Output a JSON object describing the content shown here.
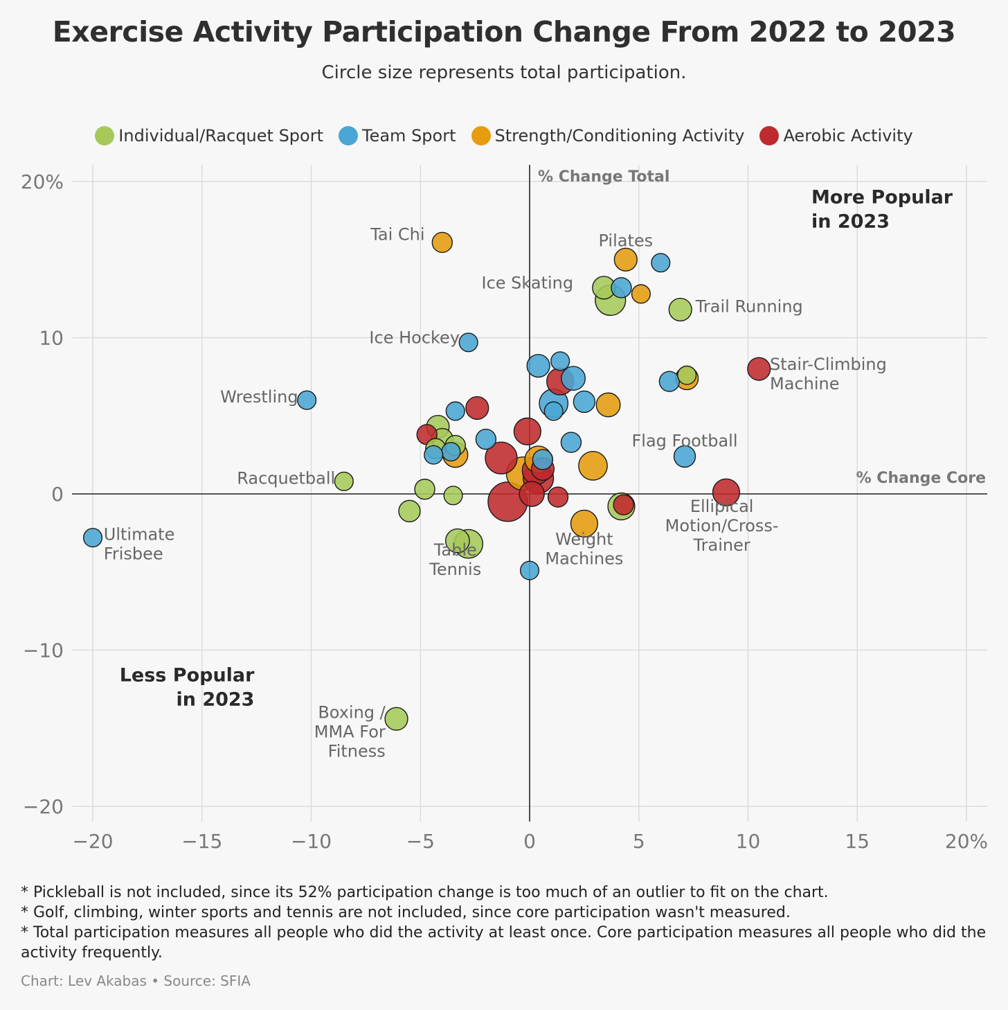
{
  "title": "Exercise Activity Participation Change From 2022 to 2023",
  "subtitle": "Circle size represents total participation.",
  "legend": [
    {
      "label": "Individual/Racquet Sport",
      "color": "#a6c95a"
    },
    {
      "label": "Team Sport",
      "color": "#4aa6d4"
    },
    {
      "label": "Strength/Conditioning Activity",
      "color": "#e59c0e"
    },
    {
      "label": "Aerobic Activity",
      "color": "#bf2a2e"
    }
  ],
  "notes": [
    "* Pickleball is not included, since its 52% participation change is too much of an outlier to fit on the chart.",
    "* Golf, climbing, winter sports and tennis are not included, since core participation wasn't measured.",
    "* Total participation measures all people who did the activity at least once. Core participation measures all people who did the activity frequently."
  ],
  "credit": "Chart: Lev Akabas • Source: SFIA",
  "chart_data": {
    "type": "scatter",
    "xlabel": "% Change Core",
    "ylabel": "% Change Total",
    "xlim": [
      -21,
      21
    ],
    "ylim": [
      -21,
      21
    ],
    "xticks": [
      {
        "v": -20,
        "label": "−20"
      },
      {
        "v": -15,
        "label": "−15"
      },
      {
        "v": -10,
        "label": "−10"
      },
      {
        "v": -5,
        "label": "−5"
      },
      {
        "v": 0,
        "label": "0"
      },
      {
        "v": 5,
        "label": "5"
      },
      {
        "v": 10,
        "label": "10"
      },
      {
        "v": 15,
        "label": "15"
      },
      {
        "v": 20,
        "label": "20%"
      }
    ],
    "yticks": [
      {
        "v": 20,
        "label": "20%"
      },
      {
        "v": 10,
        "label": "10"
      },
      {
        "v": 0,
        "label": "0"
      },
      {
        "v": -10,
        "label": "−10"
      },
      {
        "v": -20,
        "label": "−20"
      }
    ],
    "grid": true,
    "quadrant_labels": [
      {
        "text": [
          "More Popular",
          "in 2023"
        ],
        "x": 12.9,
        "y": 18.6,
        "anchor": "start"
      },
      {
        "text": [
          "Less Popular",
          "in 2023"
        ],
        "x": -12.6,
        "y": -12.0,
        "anchor": "end"
      }
    ],
    "categories": {
      "individual": "#a6c95a",
      "team": "#4aa6d4",
      "strength": "#e59c0e",
      "aerobic": "#bf2a2e"
    },
    "points": [
      {
        "x": -4.0,
        "y": 16.1,
        "size": 2,
        "cat": "strength",
        "label": [
          "Tai Chi"
        ],
        "lx": -4.8,
        "ly": 16.6,
        "la": "end"
      },
      {
        "x": 4.4,
        "y": 15.0,
        "size": 3,
        "cat": "strength",
        "label": [
          "Pilates"
        ],
        "lx": 4.4,
        "ly": 16.2,
        "la": "middle"
      },
      {
        "x": 6.0,
        "y": 14.8,
        "size": 1.5,
        "cat": "team"
      },
      {
        "x": 3.4,
        "y": 13.2,
        "size": 3,
        "cat": "individual",
        "label": [
          "Ice Skating"
        ],
        "lx": 2.0,
        "ly": 13.5,
        "la": "end"
      },
      {
        "x": 4.2,
        "y": 13.2,
        "size": 2,
        "cat": "team"
      },
      {
        "x": 5.1,
        "y": 12.8,
        "size": 1.5,
        "cat": "strength"
      },
      {
        "x": 3.7,
        "y": 12.4,
        "size": 7,
        "cat": "individual"
      },
      {
        "x": 6.9,
        "y": 11.8,
        "size": 3,
        "cat": "individual",
        "label": [
          "Trail Running"
        ],
        "lx": 7.6,
        "ly": 12.0,
        "la": "start"
      },
      {
        "x": -2.8,
        "y": 9.7,
        "size": 1.5,
        "cat": "team",
        "label": [
          "Ice Hockey"
        ],
        "lx": -3.2,
        "ly": 10.0,
        "la": "end"
      },
      {
        "x": 1.4,
        "y": 8.5,
        "size": 1.5,
        "cat": "team"
      },
      {
        "x": 0.4,
        "y": 8.2,
        "size": 3,
        "cat": "team"
      },
      {
        "x": 10.5,
        "y": 8.0,
        "size": 3,
        "cat": "aerobic",
        "label": [
          "Stair-Climbing",
          "Machine"
        ],
        "lx": 11.0,
        "ly": 8.3,
        "la": "start"
      },
      {
        "x": 2.0,
        "y": 7.4,
        "size": 3.5,
        "cat": "team"
      },
      {
        "x": 1.4,
        "y": 7.2,
        "size": 5,
        "cat": "aerobic"
      },
      {
        "x": 6.4,
        "y": 7.2,
        "size": 2,
        "cat": "team"
      },
      {
        "x": 7.2,
        "y": 7.6,
        "size": 1.5,
        "cat": "individual"
      },
      {
        "x": 7.2,
        "y": 7.4,
        "size": 3,
        "cat": "strength"
      },
      {
        "x": -10.2,
        "y": 6.0,
        "size": 1.5,
        "cat": "team",
        "label": [
          "Wrestling"
        ],
        "lx": -10.6,
        "ly": 6.2,
        "la": "end"
      },
      {
        "x": 1.1,
        "y": 5.8,
        "size": 6,
        "cat": "team"
      },
      {
        "x": 2.5,
        "y": 5.9,
        "size": 2.5,
        "cat": "team"
      },
      {
        "x": 3.6,
        "y": 5.7,
        "size": 3.5,
        "cat": "strength"
      },
      {
        "x": 1.1,
        "y": 5.3,
        "size": 1.5,
        "cat": "team"
      },
      {
        "x": -2.4,
        "y": 5.5,
        "size": 3,
        "cat": "aerobic"
      },
      {
        "x": -3.4,
        "y": 5.3,
        "size": 1.5,
        "cat": "team"
      },
      {
        "x": -4.2,
        "y": 4.3,
        "size": 3,
        "cat": "individual"
      },
      {
        "x": -4.7,
        "y": 3.8,
        "size": 2,
        "cat": "aerobic"
      },
      {
        "x": -0.1,
        "y": 4.0,
        "size": 5,
        "cat": "aerobic"
      },
      {
        "x": -4.0,
        "y": 3.5,
        "size": 2.5,
        "cat": "individual"
      },
      {
        "x": -2.0,
        "y": 3.5,
        "size": 2,
        "cat": "team"
      },
      {
        "x": 1.9,
        "y": 3.3,
        "size": 2,
        "cat": "team"
      },
      {
        "x": -3.4,
        "y": 3.1,
        "size": 2,
        "cat": "individual"
      },
      {
        "x": -4.3,
        "y": 2.9,
        "size": 2,
        "cat": "individual"
      },
      {
        "x": -3.6,
        "y": 2.7,
        "size": 1.5,
        "cat": "team"
      },
      {
        "x": -4.4,
        "y": 2.5,
        "size": 1.5,
        "cat": "team"
      },
      {
        "x": -3.4,
        "y": 2.5,
        "size": 4,
        "cat": "strength"
      },
      {
        "x": 7.1,
        "y": 2.4,
        "size": 2.5,
        "cat": "team",
        "label": [
          "Flag Football"
        ],
        "lx": 7.1,
        "ly": 3.4,
        "la": "middle"
      },
      {
        "x": -1.3,
        "y": 2.3,
        "size": 8,
        "cat": "aerobic"
      },
      {
        "x": 0.4,
        "y": 2.2,
        "size": 5,
        "cat": "strength"
      },
      {
        "x": 0.6,
        "y": 2.2,
        "size": 2,
        "cat": "team"
      },
      {
        "x": 2.9,
        "y": 1.8,
        "size": 6,
        "cat": "strength"
      },
      {
        "x": 0.6,
        "y": 1.6,
        "size": 3,
        "cat": "aerobic"
      },
      {
        "x": 0.3,
        "y": 1.5,
        "size": 5.5,
        "cat": "aerobic"
      },
      {
        "x": -0.3,
        "y": 1.3,
        "size": 9,
        "cat": "strength"
      },
      {
        "x": 0.4,
        "y": 1.0,
        "size": 7,
        "cat": "aerobic"
      },
      {
        "x": -8.5,
        "y": 0.8,
        "size": 1.5,
        "cat": "individual",
        "label": [
          "Racquetball"
        ],
        "lx": -8.9,
        "ly": 1.0,
        "la": "end"
      },
      {
        "x": -4.8,
        "y": 0.3,
        "size": 2,
        "cat": "individual"
      },
      {
        "x": -3.5,
        "y": -0.1,
        "size": 1.5,
        "cat": "individual"
      },
      {
        "x": 9.0,
        "y": 0.1,
        "size": 5,
        "cat": "aerobic",
        "label": [
          "Ellipical",
          "Motion/Cross-",
          "Trainer"
        ],
        "lx": 8.8,
        "ly": -0.8,
        "la": "middle"
      },
      {
        "x": 0.1,
        "y": 0.0,
        "size": 4,
        "cat": "aerobic"
      },
      {
        "x": 1.3,
        "y": -0.2,
        "size": 2,
        "cat": "aerobic"
      },
      {
        "x": -1.0,
        "y": -0.5,
        "size": 14,
        "cat": "aerobic"
      },
      {
        "x": 4.2,
        "y": -0.8,
        "size": 5,
        "cat": "individual"
      },
      {
        "x": 4.3,
        "y": -0.7,
        "size": 2,
        "cat": "aerobic"
      },
      {
        "x": -5.5,
        "y": -1.1,
        "size": 2.5,
        "cat": "individual"
      },
      {
        "x": 2.5,
        "y": -1.9,
        "size": 5,
        "cat": "strength",
        "label": [
          "Weight",
          "Machines"
        ],
        "lx": 2.5,
        "ly": -2.9,
        "la": "middle"
      },
      {
        "x": -20.0,
        "y": -2.8,
        "size": 1.5,
        "cat": "team",
        "label": [
          "Ultimate",
          "Frisbee"
        ],
        "lx": -19.5,
        "ly": -2.6,
        "la": "start"
      },
      {
        "x": -2.8,
        "y": -3.2,
        "size": 6,
        "cat": "individual"
      },
      {
        "x": -3.3,
        "y": -3.0,
        "size": 3.5,
        "cat": "individual",
        "label": [
          "Table",
          "Tennis"
        ],
        "lx": -3.4,
        "ly": -3.6,
        "la": "middle"
      },
      {
        "x": 0.0,
        "y": -4.9,
        "size": 1.5,
        "cat": "team"
      },
      {
        "x": -6.1,
        "y": -14.4,
        "size": 3,
        "cat": "individual",
        "label": [
          "Boxing /",
          "MMA For",
          "Fitness"
        ],
        "lx": -6.6,
        "ly": -14.0,
        "la": "end"
      }
    ]
  }
}
